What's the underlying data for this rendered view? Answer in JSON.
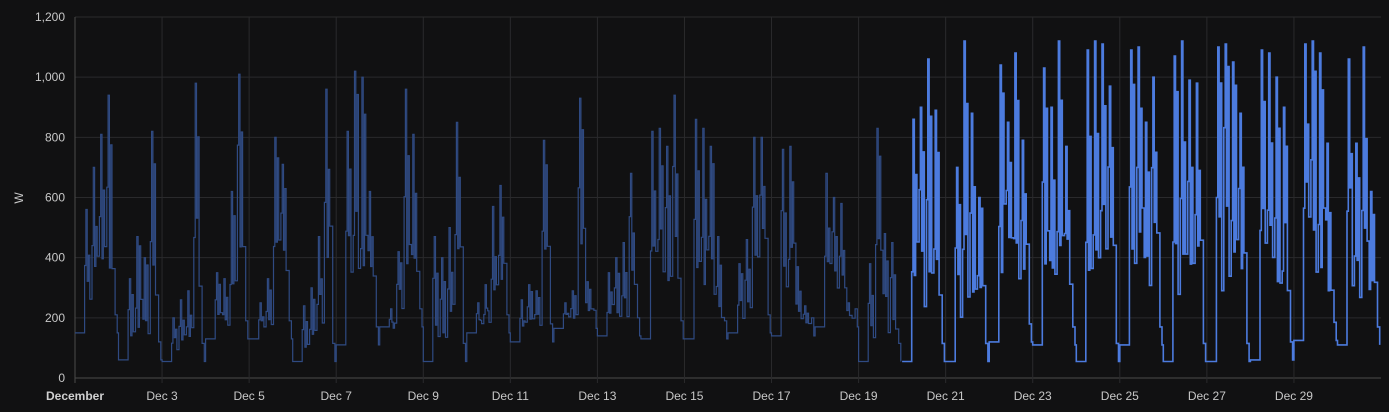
{
  "chart_data": {
    "type": "line",
    "title": "",
    "xlabel": "",
    "ylabel": "W",
    "ylim": [
      0,
      1200
    ],
    "xlim_day": [
      1,
      31
    ],
    "y_ticks": [
      0,
      200,
      400,
      600,
      800,
      1000,
      1200
    ],
    "y_tick_labels": [
      "0",
      "200",
      "400",
      "600",
      "800",
      "1,000",
      "1,200"
    ],
    "x_ticks": [
      {
        "day": 1,
        "label": "December",
        "bold": true
      },
      {
        "day": 3,
        "label": "Dec 3"
      },
      {
        "day": 5,
        "label": "Dec 5"
      },
      {
        "day": 7,
        "label": "Dec 7"
      },
      {
        "day": 9,
        "label": "Dec 9"
      },
      {
        "day": 11,
        "label": "Dec 11"
      },
      {
        "day": 13,
        "label": "Dec 13"
      },
      {
        "day": 15,
        "label": "Dec 15"
      },
      {
        "day": 17,
        "label": "Dec 17"
      },
      {
        "day": 19,
        "label": "Dec 19"
      },
      {
        "day": 21,
        "label": "Dec 21"
      },
      {
        "day": 23,
        "label": "Dec 23"
      },
      {
        "day": 25,
        "label": "Dec 25"
      },
      {
        "day": 27,
        "label": "Dec 27"
      },
      {
        "day": 29,
        "label": "Dec 29"
      }
    ],
    "series": [
      {
        "color": "#2f4a82",
        "segments": [
          {
            "day": 1.0,
            "base": 150,
            "peaks": [
              560,
              700,
              810,
              940
            ]
          },
          {
            "day": 2.0,
            "base": 60,
            "peaks": [
              330,
              470,
              400,
              820
            ]
          },
          {
            "day": 3.0,
            "base": 55,
            "peaks": [
              200,
              260,
              290,
              980
            ]
          },
          {
            "day": 4.0,
            "base": 130,
            "peaks": [
              350,
              330,
              620,
              1010
            ]
          },
          {
            "day": 5.0,
            "base": 130,
            "peaks": [
              250,
              330,
              800,
              710
            ]
          },
          {
            "day": 6.0,
            "base": 55,
            "peaks": [
              240,
              300,
              470,
              960
            ]
          },
          {
            "day": 7.0,
            "base": 110,
            "peaks": [
              820,
              1020,
              1000,
              620
            ]
          },
          {
            "day": 8.0,
            "base": 170,
            "peaks": [
              230,
              420,
              960,
              810
            ]
          },
          {
            "day": 9.0,
            "base": 55,
            "peaks": [
              470,
              400,
              500,
              850
            ]
          },
          {
            "day": 10.0,
            "base": 150,
            "peaks": [
              250,
              310,
              570,
              640
            ]
          },
          {
            "day": 11.0,
            "base": 120,
            "peaks": [
              260,
              310,
              290,
              790
            ]
          },
          {
            "day": 12.0,
            "base": 165,
            "peaks": [
              250,
              290,
              930,
              320
            ]
          },
          {
            "day": 13.0,
            "base": 140,
            "peaks": [
              350,
              400,
              450,
              680
            ]
          },
          {
            "day": 14.0,
            "base": 130,
            "peaks": [
              820,
              830,
              770,
              940
            ]
          },
          {
            "day": 15.0,
            "base": 130,
            "peaks": [
              860,
              830,
              770,
              470
            ]
          },
          {
            "day": 16.0,
            "base": 150,
            "peaks": [
              380,
              460,
              800,
              800
            ]
          },
          {
            "day": 17.0,
            "base": 140,
            "peaks": [
              760,
              770,
              370,
              240
            ]
          },
          {
            "day": 18.0,
            "base": 170,
            "peaks": [
              680,
              600,
              580,
              250
            ]
          },
          {
            "day": 19.0,
            "base": 55,
            "peaks": [
              380,
              830,
              480,
              450
            ]
          }
        ]
      },
      {
        "color": "#4c7bde",
        "segments": [
          {
            "day": 20.0,
            "base": 55,
            "peaks": [
              860,
              900,
              1060,
              890
            ]
          },
          {
            "day": 21.0,
            "base": 55,
            "peaks": [
              700,
              1120,
              880,
              600
            ]
          },
          {
            "day": 22.0,
            "base": 120,
            "peaks": [
              1040,
              850,
              1080,
              790
            ]
          },
          {
            "day": 23.0,
            "base": 110,
            "peaks": [
              1030,
              900,
              1120,
              770
            ]
          },
          {
            "day": 24.0,
            "base": 55,
            "peaks": [
              1090,
              1120,
              1110,
              970
            ]
          },
          {
            "day": 25.0,
            "base": 110,
            "peaks": [
              1090,
              1100,
              850,
              1000
            ]
          },
          {
            "day": 26.0,
            "base": 55,
            "peaks": [
              1070,
              1120,
              990,
              980
            ]
          },
          {
            "day": 27.0,
            "base": 55,
            "peaks": [
              1100,
              1110,
              1050,
              880
            ]
          },
          {
            "day": 28.0,
            "base": 60,
            "peaks": [
              1090,
              1080,
              1000,
              900
            ]
          },
          {
            "day": 29.0,
            "base": 125,
            "peaks": [
              1110,
              1120,
              1080,
              780
            ]
          },
          {
            "day": 30.0,
            "base": 110,
            "peaks": [
              1060,
              780,
              1100,
              620
            ]
          }
        ]
      }
    ]
  }
}
